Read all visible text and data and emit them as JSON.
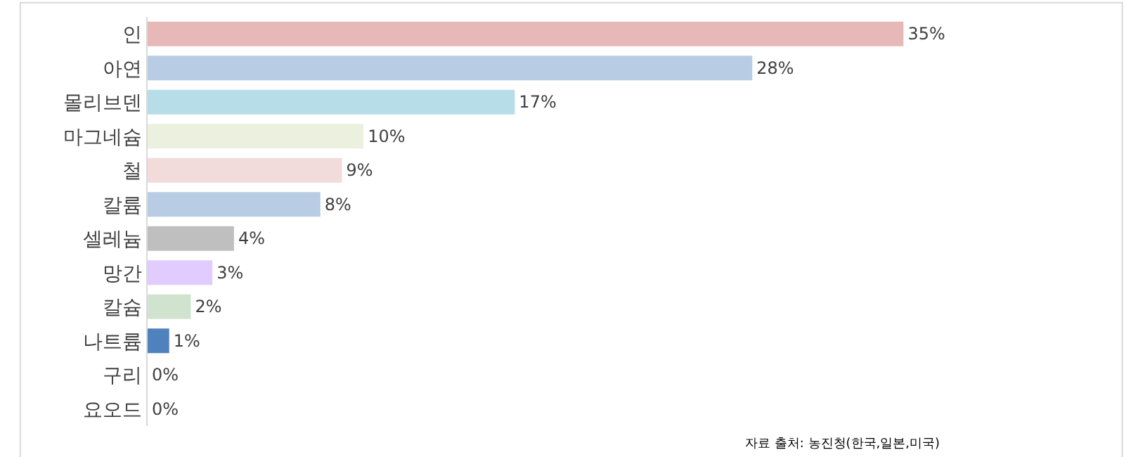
{
  "chart_data": {
    "type": "bar",
    "orientation": "horizontal",
    "categories": [
      "인",
      "아연",
      "몰리브덴",
      "마그네슘",
      "철",
      "칼륨",
      "셀레늄",
      "망간",
      "칼슘",
      "나트륨",
      "구리",
      "요오드"
    ],
    "values": [
      35,
      28,
      17,
      10,
      9,
      8,
      4,
      3,
      2,
      1,
      0,
      0
    ],
    "colors": [
      "#e6b8b7",
      "#b8cce4",
      "#b7dde8",
      "#ebf1de",
      "#f2dcdb",
      "#b8cce4",
      "#bfbfbf",
      "#e0ccff",
      "#d0e3cf",
      "#4f81bd",
      "#4f81bd",
      "#4f81bd"
    ],
    "value_labels": [
      "35%",
      "28%",
      "17%",
      "10%",
      "9%",
      "8%",
      "4%",
      "3%",
      "2%",
      "1%",
      "0%",
      "0%"
    ],
    "annotations": [
      "자료 출처: 농진청(한국,일본,미국)"
    ],
    "legend": false
  }
}
